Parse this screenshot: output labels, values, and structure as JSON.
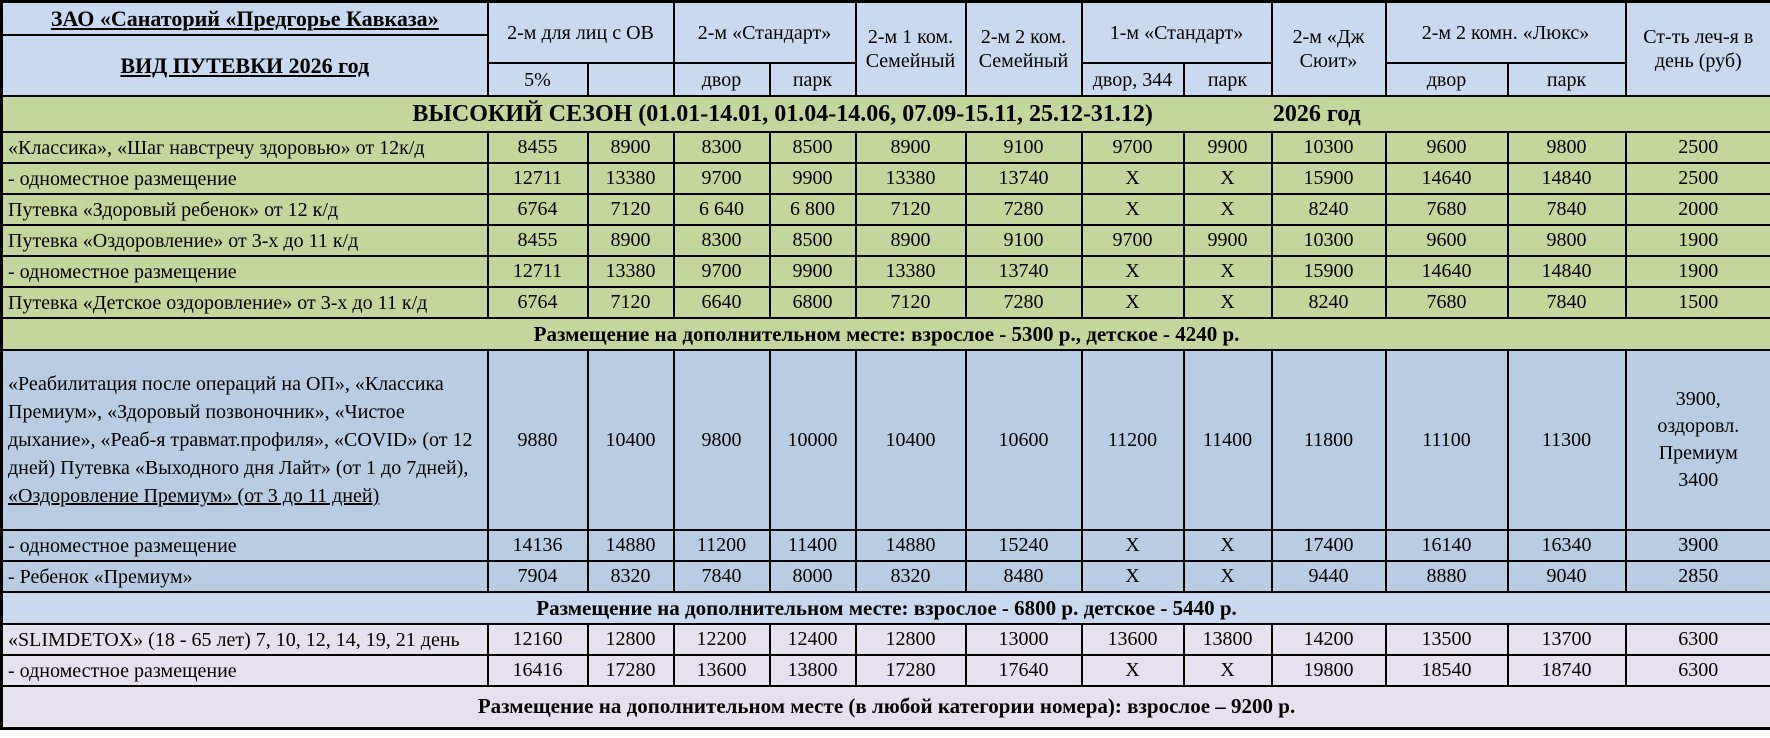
{
  "table": {
    "title_line1": "ЗАО «Санаторий «Предгорье Кавказа»",
    "title_line2": "ВИД ПУТЕВКИ 2026 год",
    "col_groups": {
      "ov": "2-м для лиц с ОВ",
      "standard2": "2-м «Стандарт»",
      "family1": "2-м  1 ком. Семейный",
      "family2": "2-м 2 ком. Семейный",
      "standard1": "1-м «Стандарт»",
      "jrsuite": "2-м «Дж Сюит»",
      "lux": "2-м 2 комн. «Люкс»",
      "treatment": "Ст-ть леч-я в день (руб)"
    },
    "sub_headers": {
      "ov_5": "5%",
      "ov_blank": "",
      "std_dvor": "двор",
      "std_park": "парк",
      "st1_dvor": "двор, 344",
      "st1_park": "парк",
      "lux_dvor": "двор",
      "lux_park": "парк"
    },
    "season_header": {
      "main": "ВЫСОКИЙ СЕЗОН (01.01-14.01, 01.04-14.06, 07.09-15.11, 25.12-31.12)",
      "year": "2026 год"
    },
    "rows": [
      {
        "type": "data",
        "section": "green",
        "label": "«Классика», «Шаг навстречу здоровью»  от 12к/д",
        "values": [
          "8455",
          "8900",
          "8300",
          "8500",
          "8900",
          "9100",
          "9700",
          "9900",
          "10300",
          "9600",
          "9800",
          "2500"
        ]
      },
      {
        "type": "data",
        "section": "green",
        "label": "- одноместное размещение",
        "values": [
          "12711",
          "13380",
          "9700",
          "9900",
          "13380",
          "13740",
          "X",
          "X",
          "15900",
          "14640",
          "14840",
          "2500"
        ]
      },
      {
        "type": "data",
        "section": "green",
        "label": "Путевка «Здоровый ребенок» от 12 к/д",
        "values": [
          "6764",
          "7120",
          "6 640",
          "6 800",
          "7120",
          "7280",
          "X",
          "X",
          "8240",
          "7680",
          "7840",
          "2000"
        ]
      },
      {
        "type": "data",
        "section": "green",
        "label": "Путевка «Оздоровление» от 3-х до 11 к/д",
        "values": [
          "8455",
          "8900",
          "8300",
          "8500",
          "8900",
          "9100",
          "9700",
          "9900",
          "10300",
          "9600",
          "9800",
          "1900"
        ]
      },
      {
        "type": "data",
        "section": "green",
        "label": "- одноместное размещение",
        "values": [
          "12711",
          "13380",
          "9700",
          "9900",
          "13380",
          "13740",
          "X",
          "X",
          "15900",
          "14640",
          "14840",
          "1900"
        ]
      },
      {
        "type": "data",
        "section": "green",
        "label": "Путевка «Детское оздоровление» от 3-х до 11 к/д",
        "values": [
          "6764",
          "7120",
          "6640",
          "6800",
          "7120",
          "7280",
          "X",
          "X",
          "8240",
          "7680",
          "7840",
          "1500"
        ]
      },
      {
        "type": "note",
        "section": "green",
        "label": "Размещение на дополнительном месте: взрослое - 5300 р., детское - 4240 р."
      },
      {
        "type": "data",
        "section": "blue",
        "big": true,
        "label_main": "«Реабилитация после операций на ОП», «Классика Премиум», «Здоровый позвоночник», «Чистое дыхание», «Реаб-я травмат.профиля», «COVID» (от 12 дней) Путевка «Выходного дня Лайт» (от 1 до 7дней), ",
        "label_underlined": "«Оздоровление Премиум» (от 3 до 11 дней)",
        "values": [
          "9880",
          "10400",
          "9800",
          "10000",
          "10400",
          "10600",
          "11200",
          "11400",
          "11800",
          "11100",
          "11300",
          "3900,\nоздоровл.\nПремиум\n3400"
        ]
      },
      {
        "type": "data",
        "section": "blue",
        "label": "- одноместное размещение",
        "values": [
          "14136",
          "14880",
          "11200",
          "11400",
          "14880",
          "15240",
          "X",
          "X",
          "17400",
          "16140",
          "16340",
          "3900"
        ]
      },
      {
        "type": "data",
        "section": "blue",
        "label": "- Ребенок «Премиум»",
        "values": [
          "7904",
          "8320",
          "7840",
          "8000",
          "8320",
          "8480",
          "X",
          "X",
          "9440",
          "8880",
          "9040",
          "2850"
        ]
      },
      {
        "type": "note",
        "section": "lightblue",
        "label": "Размещение на дополнительном месте: взрослое - 6800 р. детское - 5440 р."
      },
      {
        "type": "data",
        "section": "lav",
        "label": "«SLIMDETOX» (18 - 65 лет) 7, 10, 12, 14, 19, 21 день",
        "values": [
          "12160",
          "12800",
          "12200",
          "12400",
          "12800",
          "13000",
          "13600",
          "13800",
          "14200",
          "13500",
          "13700",
          "6300"
        ]
      },
      {
        "type": "data",
        "section": "lav",
        "label": "- одноместное размещение",
        "values": [
          "16416",
          "17280",
          "13600",
          "13800",
          "17280",
          "17640",
          "X",
          "X",
          "19800",
          "18540",
          "18740",
          "6300"
        ]
      },
      {
        "type": "note",
        "section": "lav",
        "final": true,
        "label": "Размещение на дополнительном месте (в любой категории номера): взрослое – 9200 р."
      }
    ]
  },
  "colors": {
    "header_blue": "#c9d9f0",
    "section_green": "#c3d69b",
    "section_blue": "#b8cce4",
    "section_lavender": "#e5e1ee",
    "border": "#000000"
  }
}
